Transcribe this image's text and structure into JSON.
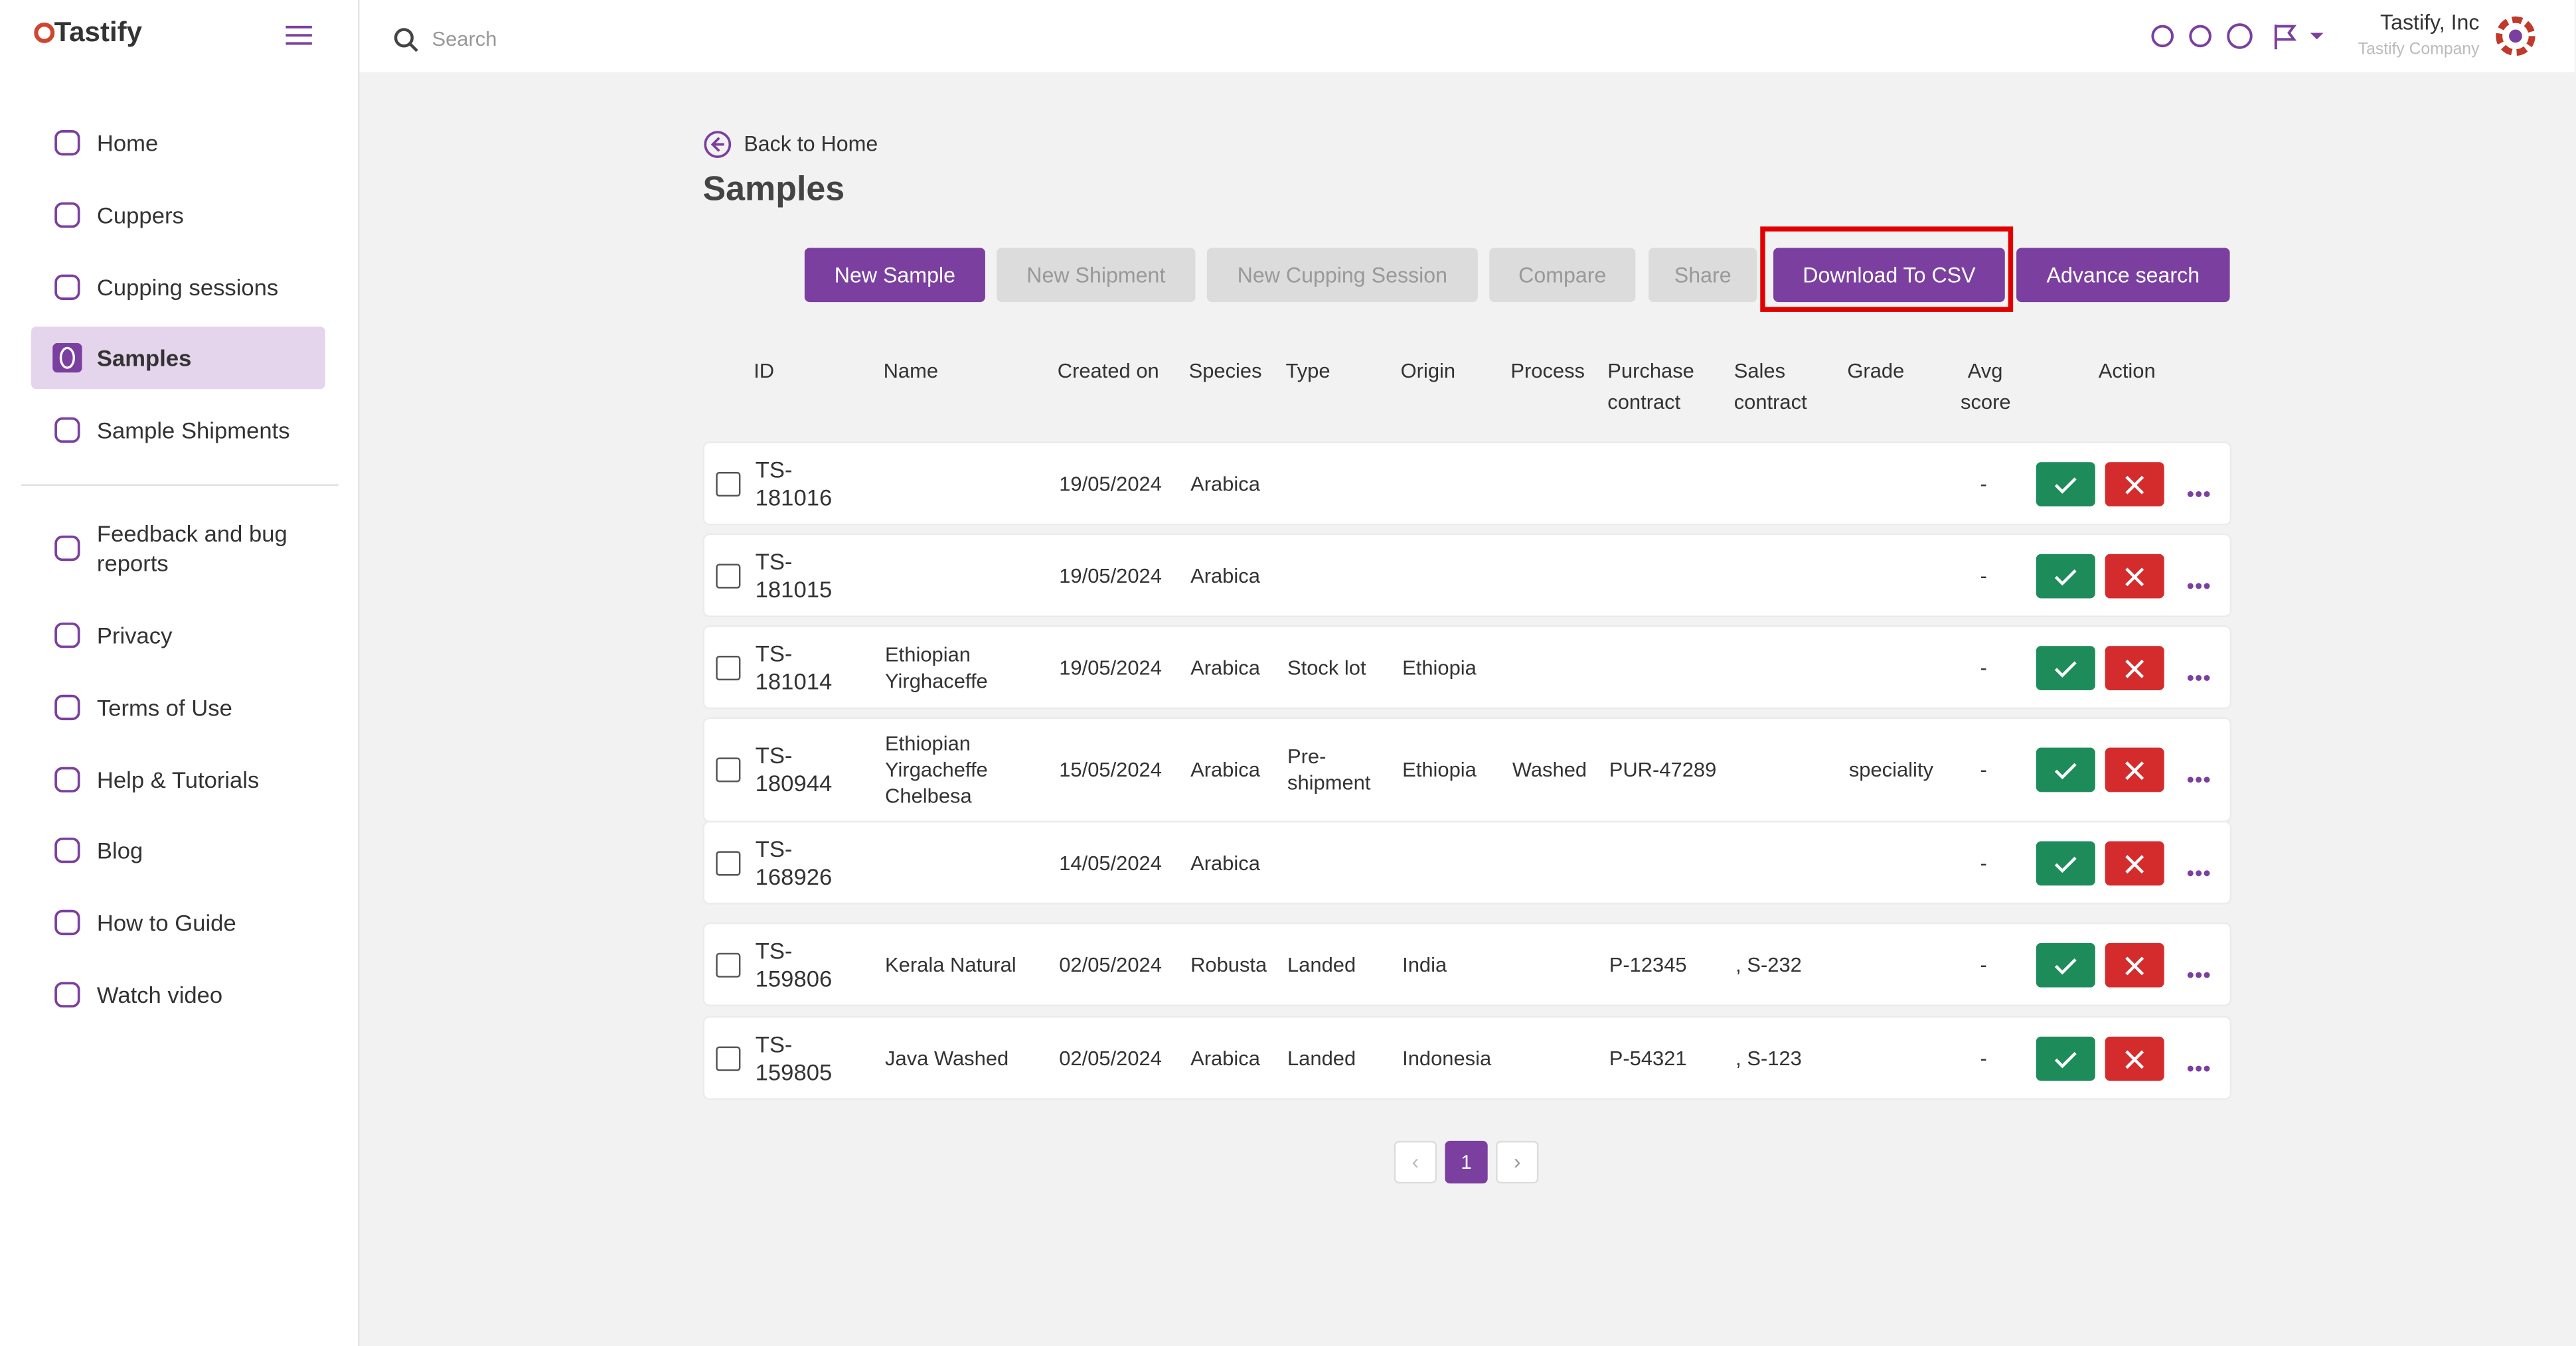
{
  "header": {
    "logo": "Tastify",
    "search_placeholder": "Search",
    "company": "Tastify, Inc",
    "company_subtitle": "Tastify Company"
  },
  "sidebar": {
    "items": [
      "Home",
      "Cuppers",
      "Cupping sessions",
      "Samples",
      "Sample Shipments",
      "Feedback and bug reports",
      "Privacy",
      "Terms of Use",
      "Help & Tutorials",
      "Blog",
      "How to Guide",
      "Watch video"
    ]
  },
  "page": {
    "back_link": "Back to Home",
    "title": "Samples"
  },
  "toolbar": {
    "buttons": [
      "New Sample",
      "New Shipment",
      "New Cupping Session",
      "Compare",
      "Share",
      "Download To CSV",
      "Advance search"
    ]
  },
  "table": {
    "columns": [
      "ID",
      "Name",
      "Created on",
      "Species",
      "Type",
      "Origin",
      "Process",
      "Purchase contract",
      "Sales contract",
      "Grade",
      "Avg score",
      "Action"
    ],
    "rows": [
      [
        "TS-181016",
        null,
        "19/05/2024",
        "Arabica",
        null,
        null,
        null,
        null,
        null,
        null,
        "-"
      ],
      [
        "TS-181015",
        null,
        "19/05/2024",
        "Arabica",
        null,
        null,
        null,
        null,
        null,
        null,
        "-"
      ],
      [
        "TS-181014",
        "Ethiopian Yirghaceffe",
        "19/05/2024",
        "Arabica",
        "Stock lot",
        "Ethiopia",
        null,
        null,
        null,
        null,
        "-"
      ],
      [
        "TS-180944",
        "Ethiopian Yirgacheffe Chelbesa",
        "15/05/2024",
        "Arabica",
        "Pre-shipment",
        "Ethiopia",
        "Washed",
        "PUR-47289",
        null,
        "speciality",
        "-"
      ],
      [
        "TS-168926",
        null,
        "14/05/2024",
        "Arabica",
        null,
        null,
        null,
        null,
        null,
        null,
        "-"
      ],
      [
        "TS-159806",
        "Kerala Natural",
        "02/05/2024",
        "Robusta",
        "Landed",
        "India",
        null,
        "P-12345",
        ", S-232",
        null,
        "-"
      ],
      [
        "TS-159805",
        "Java Washed",
        "02/05/2024",
        "Arabica",
        "Landed",
        "Indonesia",
        null,
        "P-54321",
        ", S-123",
        null,
        "-"
      ]
    ]
  },
  "pagination": {
    "current": 1
  }
}
